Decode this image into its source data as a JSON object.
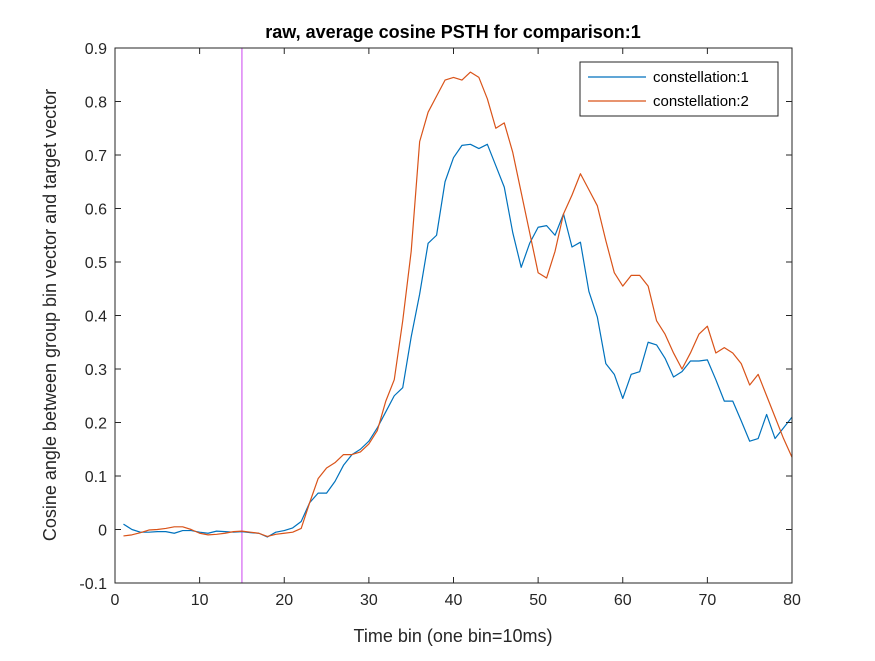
{
  "chart_data": {
    "type": "line",
    "title": "raw, average cosine PSTH for comparison:1",
    "xlabel": "Time bin (one bin=10ms)",
    "ylabel": "Cosine angle between group bin vector and target vector",
    "xlim": [
      0,
      80
    ],
    "ylim": [
      -0.1,
      0.9
    ],
    "xticks": [
      0,
      10,
      20,
      30,
      40,
      50,
      60,
      70,
      80
    ],
    "xtick_labels": [
      "0",
      "10",
      "20",
      "30",
      "40",
      "50",
      "60",
      "70",
      "80"
    ],
    "yticks": [
      -0.1,
      0,
      0.1,
      0.2,
      0.3,
      0.4,
      0.5,
      0.6,
      0.7,
      0.8,
      0.9
    ],
    "ytick_labels": [
      "-0.1",
      "0",
      "0.1",
      "0.2",
      "0.3",
      "0.4",
      "0.5",
      "0.6",
      "0.7",
      "0.8",
      "0.9"
    ],
    "grid": false,
    "legend_position": "top-right",
    "vline": {
      "x": 15,
      "color": "#cc44ee"
    },
    "x": [
      1,
      2,
      3,
      4,
      5,
      6,
      7,
      8,
      9,
      10,
      11,
      12,
      13,
      14,
      15,
      16,
      17,
      18,
      19,
      20,
      21,
      22,
      23,
      24,
      25,
      26,
      27,
      28,
      29,
      30,
      31,
      32,
      33,
      34,
      35,
      36,
      37,
      38,
      39,
      40,
      41,
      42,
      43,
      44,
      45,
      46,
      47,
      48,
      49,
      50,
      51,
      52,
      53,
      54,
      55,
      56,
      57,
      58,
      59,
      60,
      61,
      62,
      63,
      64,
      65,
      66,
      67,
      68,
      69,
      70,
      71,
      72,
      73,
      74,
      75,
      76,
      77,
      78,
      79,
      80
    ],
    "series": [
      {
        "name": "constellation:1",
        "color": "#0072bd",
        "values": [
          0.01,
          0.0,
          -0.005,
          -0.005,
          -0.004,
          -0.004,
          -0.007,
          -0.002,
          -0.002,
          -0.005,
          -0.007,
          -0.003,
          -0.004,
          -0.005,
          -0.004,
          -0.006,
          -0.007,
          -0.014,
          -0.005,
          -0.002,
          0.003,
          0.015,
          0.05,
          0.068,
          0.068,
          0.09,
          0.12,
          0.14,
          0.15,
          0.165,
          0.19,
          0.22,
          0.25,
          0.265,
          0.36,
          0.44,
          0.535,
          0.55,
          0.65,
          0.695,
          0.718,
          0.72,
          0.712,
          0.72,
          0.68,
          0.64,
          0.555,
          0.49,
          0.535,
          0.565,
          0.568,
          0.55,
          0.59,
          0.528,
          0.537,
          0.445,
          0.397,
          0.31,
          0.29,
          0.245,
          0.29,
          0.295,
          0.35,
          0.345,
          0.32,
          0.285,
          0.295,
          0.315,
          0.315,
          0.317,
          0.28,
          0.24,
          0.24,
          0.203,
          0.165,
          0.17,
          0.215,
          0.17,
          0.19,
          0.21
        ]
      },
      {
        "name": "constellation:2",
        "color": "#d95319",
        "values": [
          -0.012,
          -0.01,
          -0.006,
          -0.001,
          0.0,
          0.002,
          0.005,
          0.005,
          0.0,
          -0.007,
          -0.01,
          -0.009,
          -0.007,
          -0.004,
          -0.003,
          -0.005,
          -0.007,
          -0.013,
          -0.009,
          -0.007,
          -0.005,
          0.002,
          0.05,
          0.095,
          0.115,
          0.125,
          0.14,
          0.14,
          0.145,
          0.16,
          0.185,
          0.24,
          0.28,
          0.39,
          0.52,
          0.725,
          0.78,
          0.81,
          0.84,
          0.845,
          0.84,
          0.855,
          0.845,
          0.805,
          0.75,
          0.76,
          0.705,
          0.63,
          0.555,
          0.48,
          0.47,
          0.52,
          0.59,
          0.625,
          0.665,
          0.635,
          0.605,
          0.54,
          0.48,
          0.455,
          0.475,
          0.475,
          0.455,
          0.39,
          0.365,
          0.33,
          0.3,
          0.33,
          0.365,
          0.38,
          0.33,
          0.34,
          0.33,
          0.31,
          0.27,
          0.29,
          0.25,
          0.21,
          0.17,
          0.135
        ]
      }
    ]
  }
}
